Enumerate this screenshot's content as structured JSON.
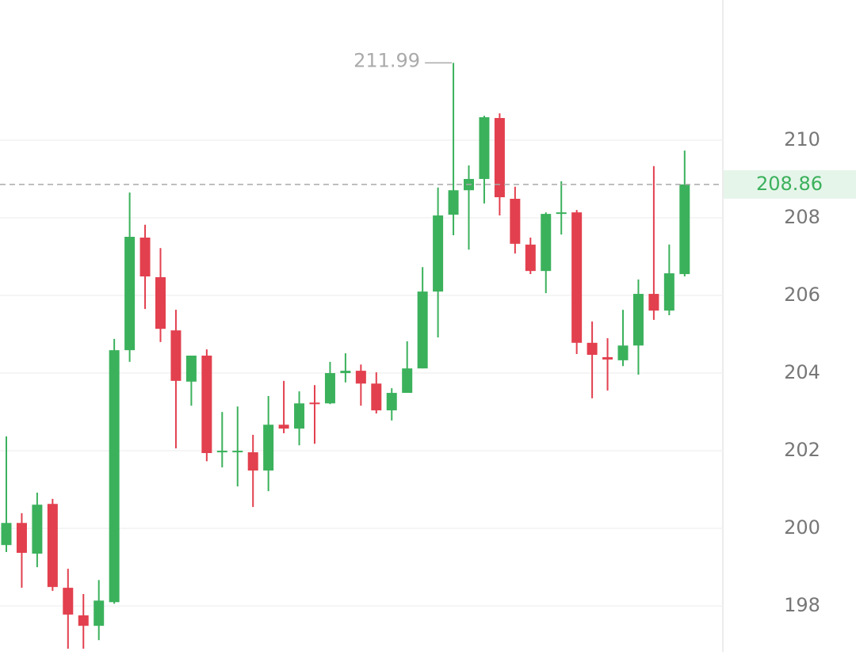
{
  "chart_data": {
    "type": "candlestick",
    "open": [
      199.57,
      200.14,
      199.35,
      200.63,
      198.47,
      197.76,
      197.49,
      198.1,
      204.59,
      207.49,
      206.47,
      205.1,
      203.78,
      204.45,
      201.98,
      201.98,
      201.96,
      201.49,
      202.67,
      202.57,
      203.24,
      203.22,
      204.0,
      204.06,
      203.73,
      203.04,
      203.49,
      204.12,
      206.1,
      208.08,
      208.71,
      209.0,
      210.57,
      208.49,
      207.31,
      206.63,
      208.1,
      208.14,
      204.78,
      204.41,
      204.33,
      204.71,
      206.04,
      205.61,
      206.55
    ],
    "high": [
      202.37,
      200.39,
      200.92,
      200.76,
      198.96,
      198.31,
      198.67,
      204.88,
      208.65,
      207.82,
      207.22,
      205.63,
      204.45,
      204.61,
      203.0,
      203.14,
      202.41,
      203.41,
      203.8,
      203.53,
      203.69,
      204.29,
      204.51,
      204.22,
      204.02,
      203.61,
      204.82,
      206.73,
      208.78,
      211.99,
      209.35,
      210.63,
      210.69,
      208.8,
      207.49,
      208.14,
      208.94,
      208.2,
      205.33,
      204.9,
      205.63,
      206.41,
      209.33,
      207.31,
      209.73
    ],
    "low": [
      199.39,
      198.47,
      199.0,
      198.39,
      196.9,
      196.9,
      197.12,
      198.06,
      204.29,
      205.65,
      204.8,
      202.06,
      203.16,
      201.73,
      201.57,
      201.08,
      200.55,
      200.96,
      202.45,
      202.14,
      202.18,
      203.2,
      203.76,
      203.16,
      202.96,
      202.78,
      203.49,
      204.12,
      204.92,
      207.55,
      207.18,
      208.37,
      208.06,
      207.08,
      206.55,
      206.06,
      207.57,
      204.49,
      203.35,
      203.55,
      204.18,
      203.96,
      205.37,
      205.49,
      206.49
    ],
    "close": [
      200.14,
      199.37,
      200.61,
      198.49,
      197.78,
      197.49,
      198.14,
      204.59,
      207.51,
      206.49,
      205.14,
      203.8,
      204.45,
      201.94,
      202.0,
      202.0,
      201.49,
      202.67,
      202.57,
      203.22,
      203.22,
      204.0,
      204.06,
      203.73,
      203.04,
      203.49,
      204.12,
      206.1,
      208.06,
      208.71,
      209.0,
      210.59,
      208.53,
      207.33,
      206.63,
      208.1,
      208.14,
      204.78,
      204.47,
      204.35,
      204.71,
      206.04,
      205.61,
      206.57,
      208.86
    ],
    "up_color": "#3bb15c",
    "down_color": "#e2404e",
    "ylim": [
      196.82,
      213.61
    ],
    "yticks": [
      198,
      200,
      202,
      204,
      206,
      208,
      210
    ],
    "grid": true
  }
}
